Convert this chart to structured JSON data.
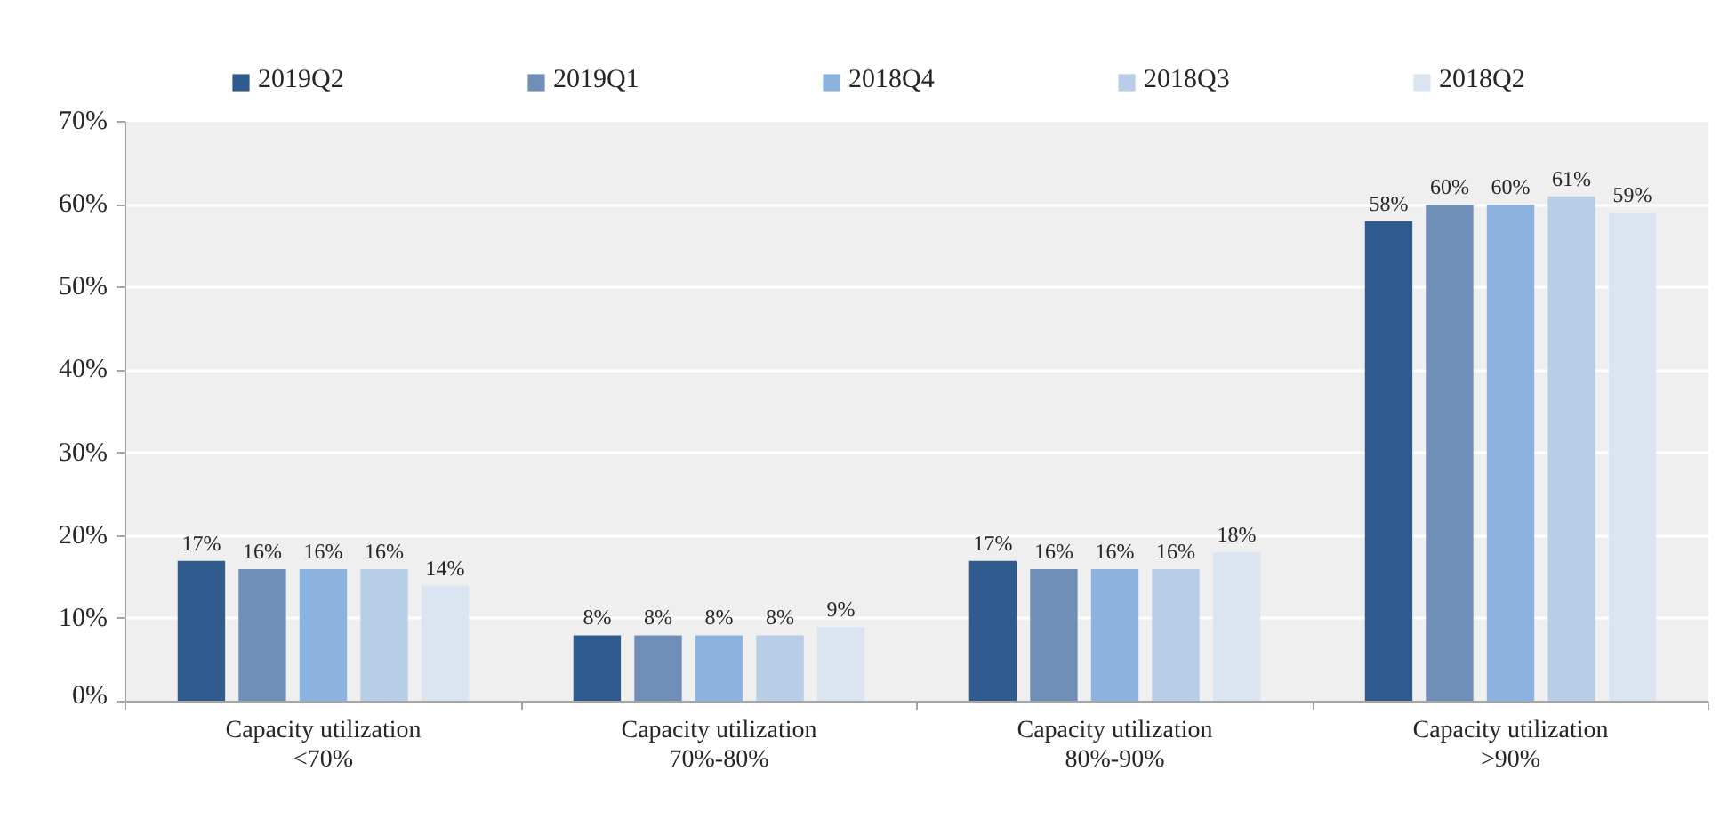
{
  "chart_data": {
    "type": "bar",
    "categories": [
      "Capacity utilization\n<70%",
      "Capacity utilization\n70%-80%",
      "Capacity utilization\n80%-90%",
      "Capacity utilization\n>90%"
    ],
    "series": [
      {
        "name": "2019Q2",
        "color": "#2f5b8f",
        "values": [
          17,
          8,
          17,
          58
        ],
        "value_labels": [
          "17%",
          "8%",
          "17%",
          "58%"
        ]
      },
      {
        "name": "2019Q1",
        "color": "#6f8fb8",
        "values": [
          16,
          8,
          16,
          60
        ],
        "value_labels": [
          "16%",
          "8%",
          "16%",
          "60%"
        ]
      },
      {
        "name": "2018Q4",
        "color": "#8cb2df",
        "values": [
          16,
          8,
          16,
          60
        ],
        "value_labels": [
          "16%",
          "8%",
          "16%",
          "60%"
        ]
      },
      {
        "name": "2018Q3",
        "color": "#b8cde6",
        "values": [
          16,
          8,
          16,
          61
        ],
        "value_labels": [
          "16%",
          "8%",
          "16%",
          "61%"
        ]
      },
      {
        "name": "2018Q2",
        "color": "#dbe5f1",
        "values": [
          14,
          9,
          18,
          59
        ],
        "value_labels": [
          "14%",
          "9%",
          "18%",
          "59%"
        ]
      }
    ],
    "ylim": [
      0,
      70
    ],
    "yticks": [
      {
        "value": 0,
        "label": "0%"
      },
      {
        "value": 10,
        "label": "10%"
      },
      {
        "value": 20,
        "label": "20%"
      },
      {
        "value": 30,
        "label": "30%"
      },
      {
        "value": 40,
        "label": "40%"
      },
      {
        "value": 50,
        "label": "50%"
      },
      {
        "value": 60,
        "label": "60%"
      },
      {
        "value": 70,
        "label": "70%"
      }
    ],
    "grid": "y",
    "legend": "top"
  }
}
